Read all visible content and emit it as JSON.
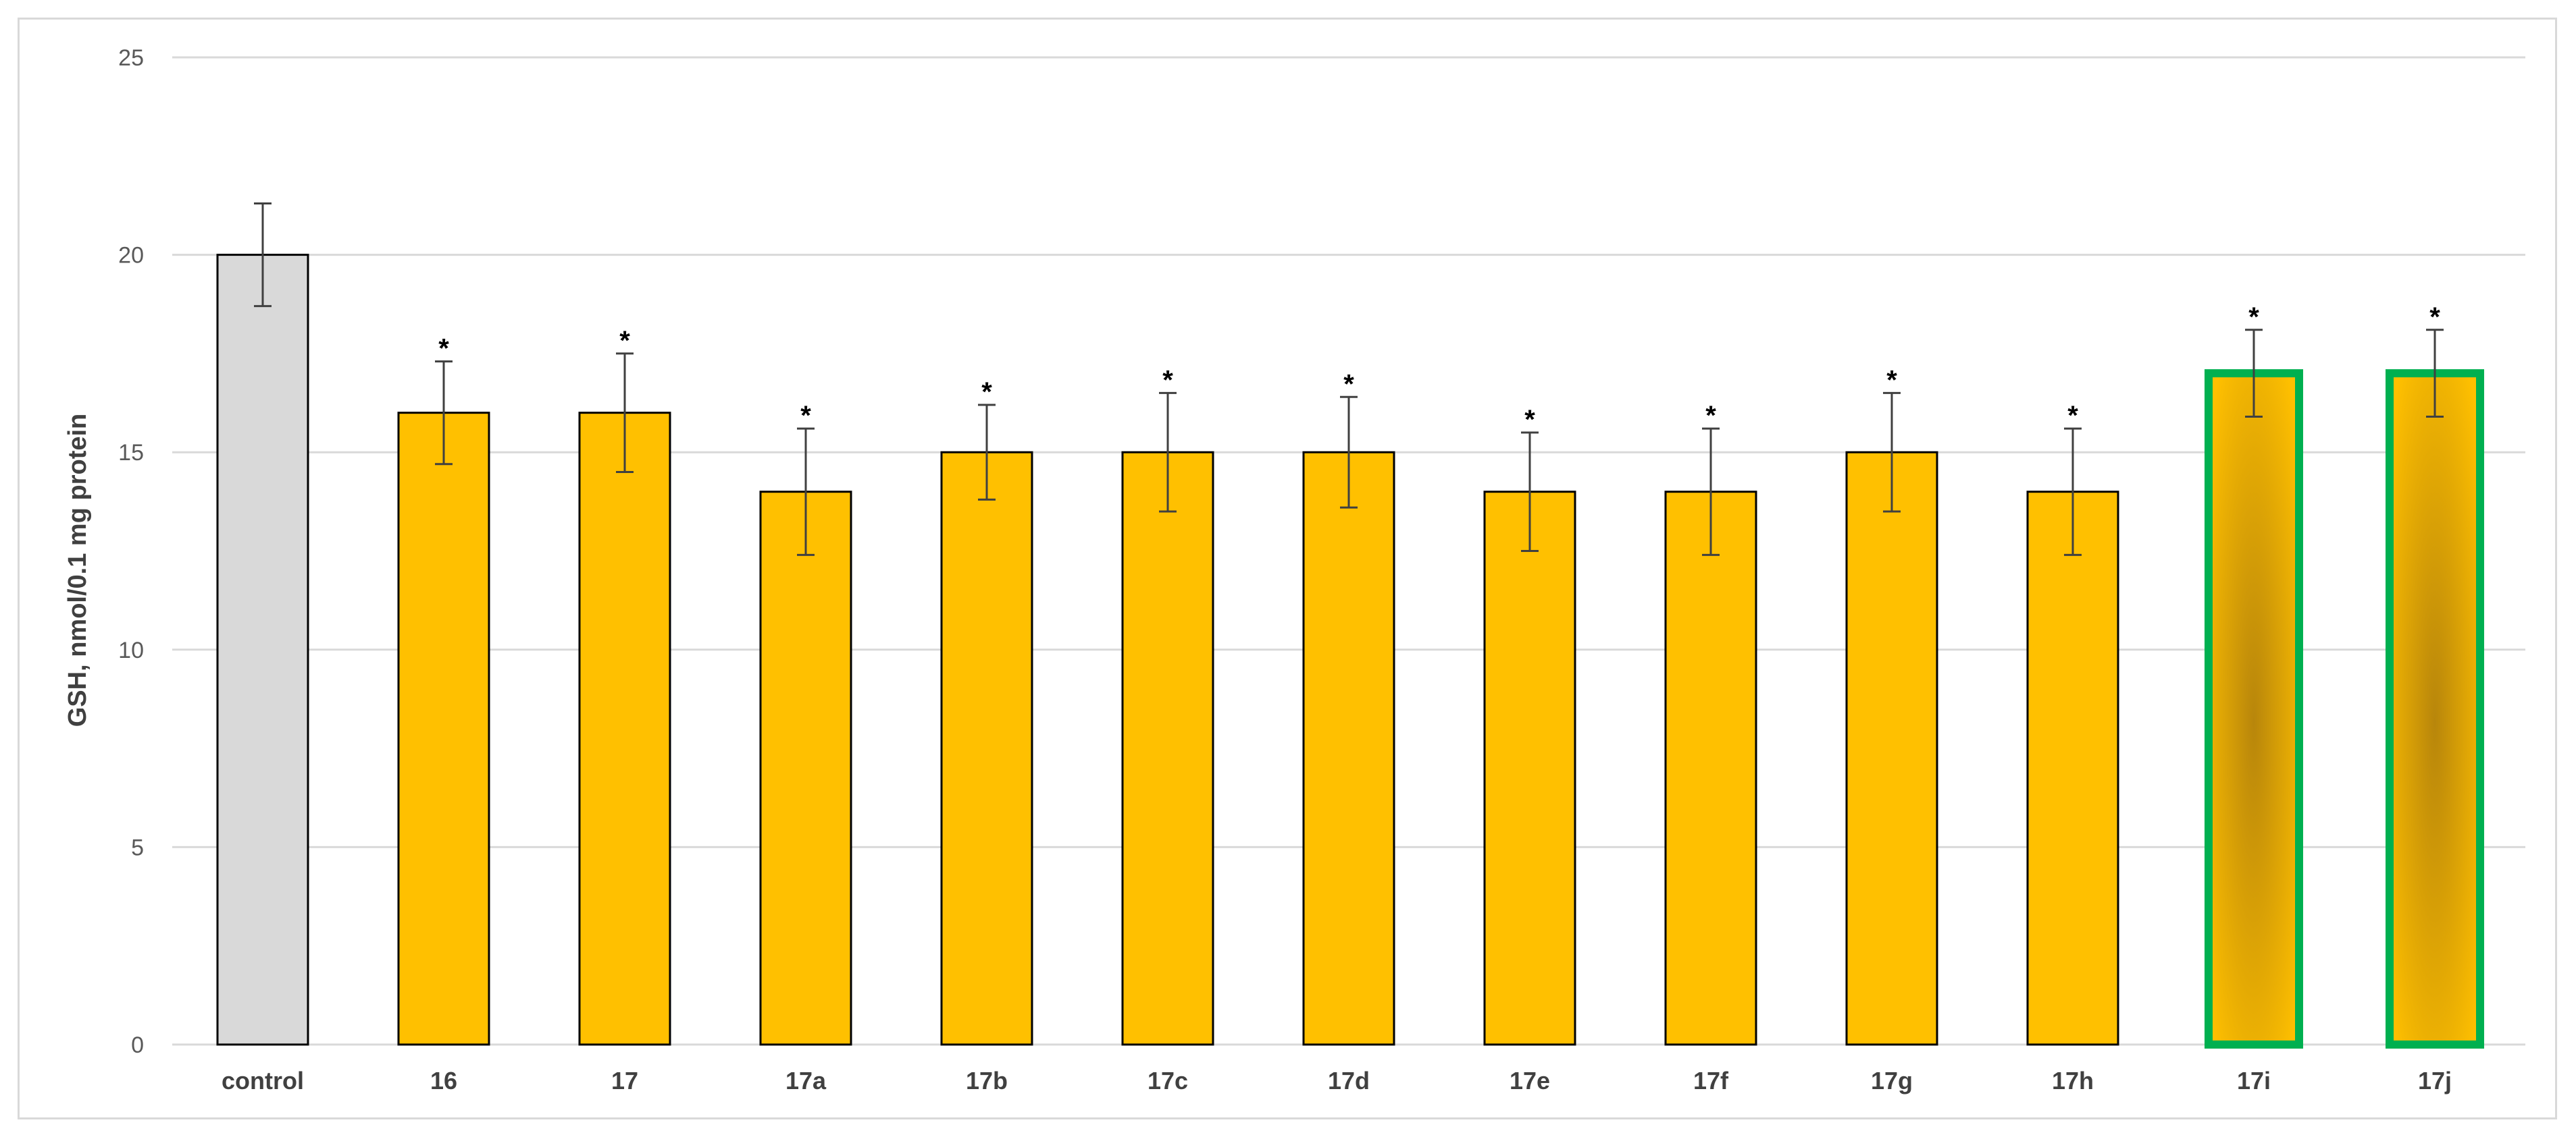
{
  "chart_data": {
    "type": "bar",
    "title": "",
    "xlabel": "",
    "ylabel": "GSH, nmol/0.1 mg protein",
    "ylim": [
      0,
      25
    ],
    "yticks": [
      0,
      5,
      10,
      15,
      20,
      25
    ],
    "grid": true,
    "legend": "none",
    "categories": [
      "control",
      "16",
      "17",
      "17a",
      "17b",
      "17c",
      "17d",
      "17e",
      "17f",
      "17g",
      "17h",
      "17i",
      "17j"
    ],
    "values": [
      20,
      16,
      16,
      14,
      15,
      15,
      15,
      14,
      14,
      15,
      14,
      17,
      17
    ],
    "error": [
      1.3,
      1.3,
      1.5,
      1.6,
      1.2,
      1.5,
      1.4,
      1.5,
      1.6,
      1.5,
      1.6,
      1.1,
      1.1
    ],
    "significance": [
      "",
      "*",
      "*",
      "*",
      "*",
      "*",
      "*",
      "*",
      "*",
      "*",
      "*",
      "*",
      "*"
    ],
    "highlighted": [
      false,
      false,
      false,
      false,
      false,
      false,
      false,
      false,
      false,
      false,
      false,
      true,
      true
    ],
    "colors": {
      "control": "#d9d9d9",
      "bar": "#ffc000",
      "bar_dark": "#b8860b",
      "highlight_border": "#00b050",
      "bar_border": "#000000",
      "grid": "#d9d9d9",
      "error": "#404040"
    }
  }
}
